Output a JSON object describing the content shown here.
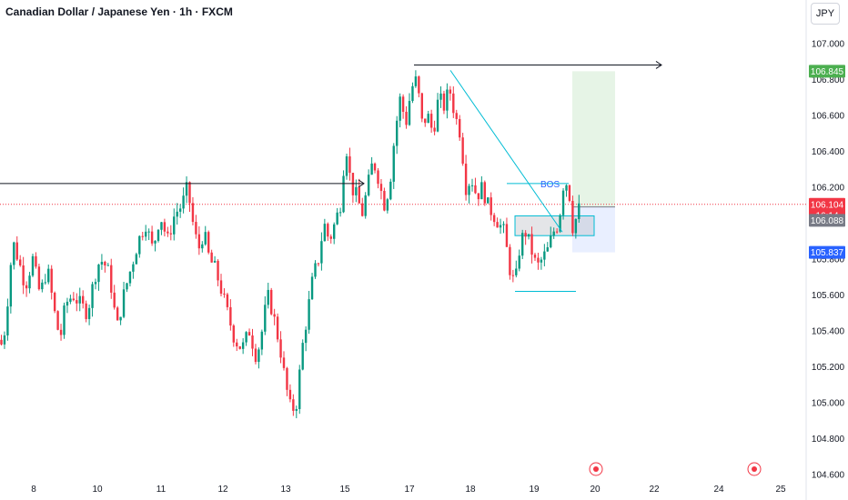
{
  "header": {
    "title": "Canadian Dollar / Japanese Yen · 1h · FXCM",
    "currency_button": "JPY"
  },
  "annotations": {
    "bos_label": "BOS"
  },
  "colors": {
    "up": "#089981",
    "down": "#f23645",
    "accent": "#2962ff",
    "line": "#00bcd4",
    "target_zone": "#4caf50",
    "stop_zone": "#2962ff"
  },
  "chart_data": {
    "type": "candlestick",
    "title": "Canadian Dollar / Japanese Yen · 1h · FXCM",
    "ylim": [
      104.6,
      107.1
    ],
    "y_ticks": [
      104.6,
      104.8,
      105.0,
      105.2,
      105.4,
      105.6,
      105.8,
      106.0,
      106.2,
      106.4,
      106.6,
      106.8,
      107.0
    ],
    "y_tick_labels": [
      "104.600",
      "104.800",
      "105.000",
      "105.200",
      "105.400",
      "105.600",
      "105.800",
      "106.000",
      "106.200",
      "106.400",
      "106.600",
      "106.800",
      "107.000"
    ],
    "x_ticks": [
      "8",
      "10",
      "11",
      "12",
      "13",
      "15",
      "17",
      "18",
      "19",
      "20",
      "22",
      "24",
      "25"
    ],
    "price_path": [
      [
        0,
        105.35
      ],
      [
        3,
        105.3
      ],
      [
        8,
        105.55
      ],
      [
        14,
        105.9
      ],
      [
        20,
        105.8
      ],
      [
        28,
        105.65
      ],
      [
        36,
        105.8
      ],
      [
        44,
        105.6
      ],
      [
        52,
        105.75
      ],
      [
        60,
        105.5
      ],
      [
        66,
        105.35
      ],
      [
        72,
        105.55
      ],
      [
        80,
        105.6
      ],
      [
        88,
        105.55
      ],
      [
        96,
        105.5
      ],
      [
        104,
        105.7
      ],
      [
        110,
        105.8
      ],
      [
        118,
        105.75
      ],
      [
        124,
        105.6
      ],
      [
        128,
        105.4
      ],
      [
        136,
        105.6
      ],
      [
        144,
        105.75
      ],
      [
        152,
        105.9
      ],
      [
        160,
        106.0
      ],
      [
        168,
        105.85
      ],
      [
        176,
        106.05
      ],
      [
        184,
        105.9
      ],
      [
        192,
        106.05
      ],
      [
        200,
        106.1
      ],
      [
        206,
        106.2
      ],
      [
        212,
        106.0
      ],
      [
        218,
        105.85
      ],
      [
        224,
        105.95
      ],
      [
        230,
        105.8
      ],
      [
        236,
        105.75
      ],
      [
        242,
        105.65
      ],
      [
        250,
        105.5
      ],
      [
        258,
        105.35
      ],
      [
        266,
        105.3
      ],
      [
        274,
        105.4
      ],
      [
        282,
        105.25
      ],
      [
        288,
        105.4
      ],
      [
        294,
        105.6
      ],
      [
        300,
        105.5
      ],
      [
        308,
        105.3
      ],
      [
        314,
        105.1
      ],
      [
        320,
        104.95
      ],
      [
        326,
        105.0
      ],
      [
        332,
        105.3
      ],
      [
        338,
        105.5
      ],
      [
        344,
        105.7
      ],
      [
        350,
        105.8
      ],
      [
        356,
        106.0
      ],
      [
        362,
        105.9
      ],
      [
        368,
        106.0
      ],
      [
        374,
        106.1
      ],
      [
        380,
        106.45
      ],
      [
        386,
        106.2
      ],
      [
        392,
        106.15
      ],
      [
        398,
        106.05
      ],
      [
        404,
        106.2
      ],
      [
        410,
        106.35
      ],
      [
        416,
        106.25
      ],
      [
        422,
        106.1
      ],
      [
        428,
        106.2
      ],
      [
        434,
        106.5
      ],
      [
        440,
        106.7
      ],
      [
        446,
        106.55
      ],
      [
        452,
        106.75
      ],
      [
        458,
        106.8
      ],
      [
        464,
        106.55
      ],
      [
        470,
        106.6
      ],
      [
        476,
        106.5
      ],
      [
        482,
        106.7
      ],
      [
        488,
        106.65
      ],
      [
        494,
        106.75
      ],
      [
        500,
        106.6
      ],
      [
        506,
        106.5
      ],
      [
        512,
        106.2
      ],
      [
        518,
        106.25
      ],
      [
        524,
        106.15
      ],
      [
        530,
        106.2
      ],
      [
        536,
        106.1
      ],
      [
        542,
        106.05
      ],
      [
        548,
        106.0
      ],
      [
        554,
        105.95
      ],
      [
        560,
        105.75
      ],
      [
        566,
        105.65
      ],
      [
        572,
        105.9
      ],
      [
        578,
        105.95
      ],
      [
        584,
        105.85
      ],
      [
        590,
        105.75
      ],
      [
        596,
        105.8
      ],
      [
        602,
        105.85
      ],
      [
        608,
        105.95
      ],
      [
        614,
        106.0
      ],
      [
        620,
        106.25
      ],
      [
        625,
        106.2
      ],
      [
        630,
        105.95
      ],
      [
        634,
        106.05
      ],
      [
        638,
        106.1
      ]
    ],
    "horizontal_rays": [
      {
        "name": "previous-high-ray",
        "price": 106.22,
        "x_start": 0,
        "x_end": 400
      },
      {
        "name": "swing-high-ray",
        "price": 106.88,
        "x_start": 455,
        "x_end": 727
      }
    ],
    "trendline": {
      "from": [
        495,
        106.85
      ],
      "to": [
        618,
        105.95
      ]
    },
    "bos_level": {
      "price": 106.22,
      "x_start": 557,
      "x_end": 625
    },
    "support_level": {
      "price": 105.62,
      "x_start": 566,
      "x_end": 633
    },
    "demand_zone": {
      "top": 106.04,
      "bottom": 105.93,
      "x_start": 566,
      "x_end": 653
    },
    "position": {
      "entry": 106.09,
      "target": 106.845,
      "stop": 105.837,
      "x_start": 629,
      "x_end": 676
    },
    "current_price": 106.104,
    "countdown": "16:14",
    "labels": {
      "current_price": "106.104",
      "entry": "106.088",
      "target": "106.845",
      "stop": "105.837"
    }
  }
}
